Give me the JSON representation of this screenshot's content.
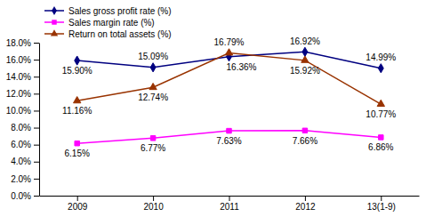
{
  "chart_data": {
    "type": "line",
    "categories": [
      "2009",
      "2010",
      "2011",
      "2012",
      "13(1-9)"
    ],
    "series": [
      {
        "name": "Sales gross profit rate (%)",
        "color": "#000080",
        "marker": "diamond",
        "line_style": "solid",
        "values": [
          15.9,
          15.09,
          16.36,
          16.92,
          14.99
        ],
        "value_labels": [
          "15.90%",
          "15.09%",
          "16.36%",
          "16.92%",
          "14.99%"
        ]
      },
      {
        "name": "Sales margin rate (%)",
        "color": "#ff00ff",
        "marker": "square",
        "line_style": "solid",
        "values": [
          6.15,
          6.77,
          7.63,
          7.66,
          6.86
        ],
        "value_labels": [
          "6.15%",
          "6.77%",
          "7.63%",
          "7.66%",
          "6.86%"
        ]
      },
      {
        "name": "Return on total assets (%)",
        "color": "#993300",
        "marker": "triangle",
        "line_style": "solid",
        "values": [
          11.16,
          12.74,
          16.79,
          15.92,
          10.77
        ],
        "value_labels": [
          "11.16%",
          "12.74%",
          "16.79%",
          "15.92%",
          "10.77%"
        ]
      }
    ],
    "ylim": [
      0,
      18
    ],
    "yticks": [
      {
        "value": 0,
        "label": "0.0%"
      },
      {
        "value": 2,
        "label": "2.0%"
      },
      {
        "value": 4,
        "label": "4.0%"
      },
      {
        "value": 6,
        "label": "6.0%"
      },
      {
        "value": 8,
        "label": "8.0%"
      },
      {
        "value": 10,
        "label": "10.0%"
      },
      {
        "value": 12,
        "label": "12.0%"
      },
      {
        "value": 14,
        "label": "14.0%"
      },
      {
        "value": 16,
        "label": "16.0%"
      },
      {
        "value": 18,
        "label": "18.0%"
      }
    ],
    "grid": false,
    "legend": "top-left",
    "data_labels": true
  }
}
